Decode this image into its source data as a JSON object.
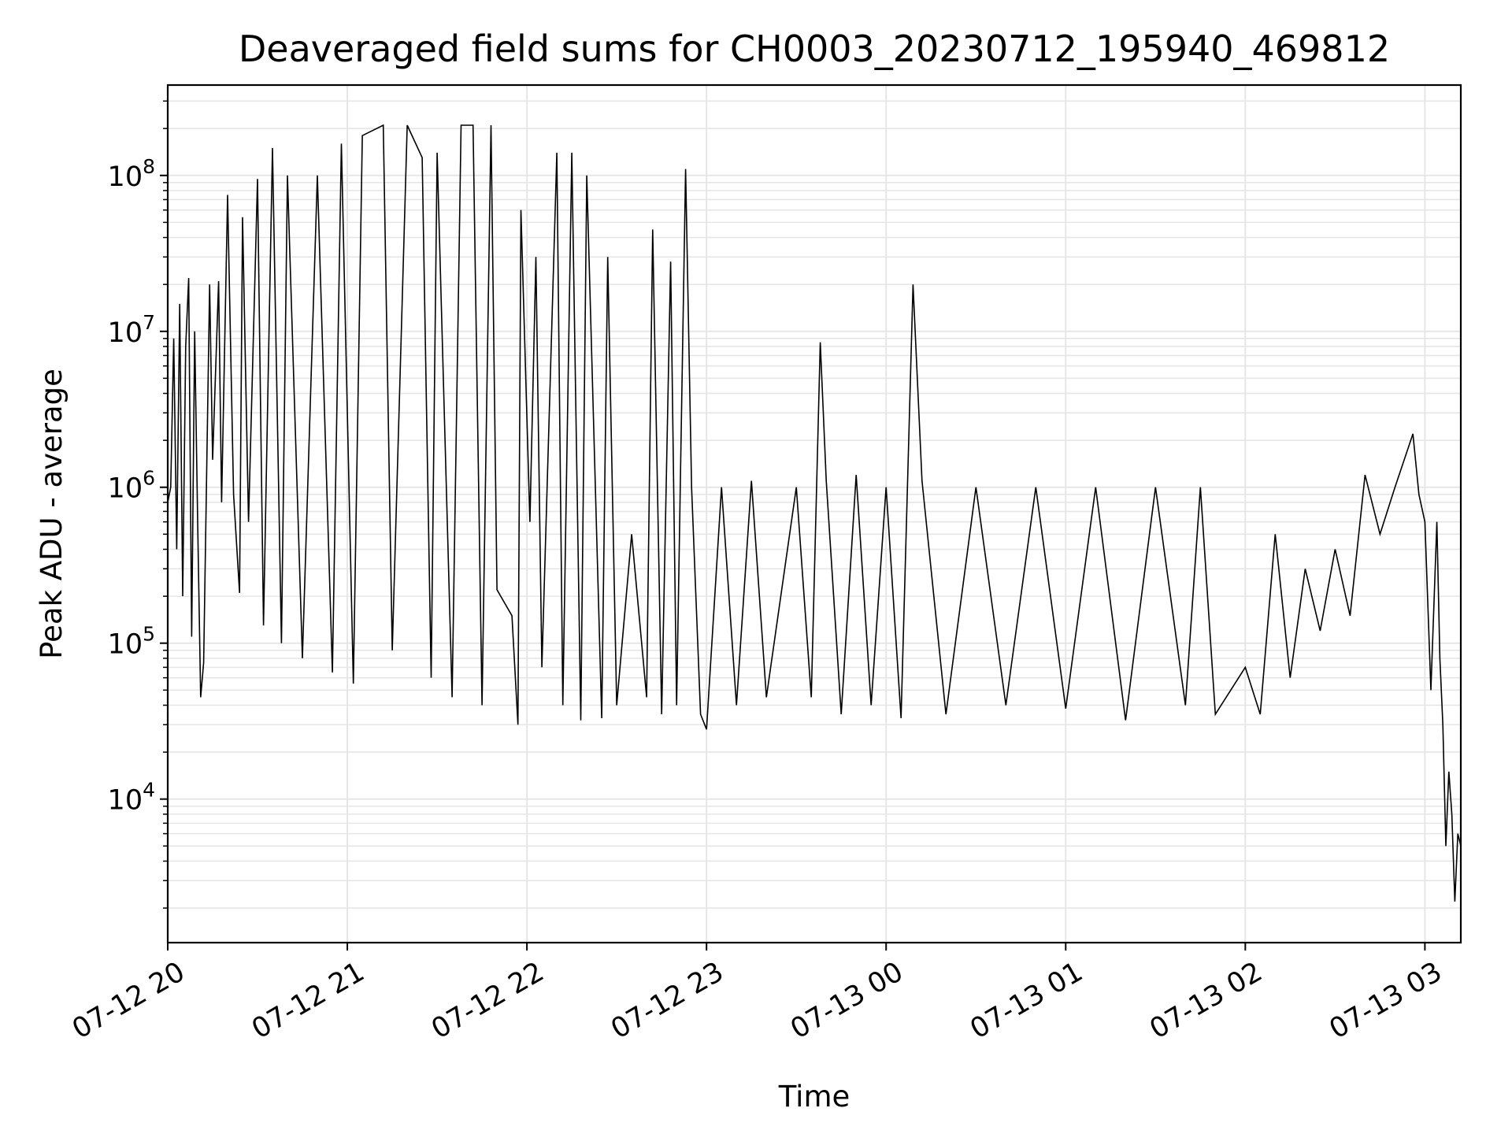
{
  "chart_data": {
    "type": "line",
    "title": "Deaveraged field sums for CH0003_20230712_195940_469812",
    "xlabel": "Time",
    "ylabel": "Peak ADU - average",
    "y_scale": "log",
    "ylim": [
      1200,
      380000000
    ],
    "xlim": [
      "2023-07-12 20:00",
      "2023-07-13 03:12"
    ],
    "x_ticks": [
      {
        "label": "07-12 20",
        "t": "2023-07-12 20:00"
      },
      {
        "label": "07-12 21",
        "t": "2023-07-12 21:00"
      },
      {
        "label": "07-12 22",
        "t": "2023-07-12 22:00"
      },
      {
        "label": "07-12 23",
        "t": "2023-07-12 23:00"
      },
      {
        "label": "07-13 00",
        "t": "2023-07-13 00:00"
      },
      {
        "label": "07-13 01",
        "t": "2023-07-13 01:00"
      },
      {
        "label": "07-13 02",
        "t": "2023-07-13 02:00"
      },
      {
        "label": "07-13 03",
        "t": "2023-07-13 03:00"
      }
    ],
    "y_ticks": [
      {
        "value": 10000,
        "base": "10",
        "exp": "4"
      },
      {
        "value": 100000,
        "base": "10",
        "exp": "5"
      },
      {
        "value": 1000000,
        "base": "10",
        "exp": "6"
      },
      {
        "value": 10000000,
        "base": "10",
        "exp": "7"
      },
      {
        "value": 100000000,
        "base": "10",
        "exp": "8"
      }
    ],
    "grid": true,
    "line_color": "#000000",
    "grid_color": "#e6e6e6",
    "series": [
      {
        "points": [
          [
            "2023-07-12 20:00",
            800000
          ],
          [
            "2023-07-12 20:01",
            1000000
          ],
          [
            "2023-07-12 20:02",
            9000000
          ],
          [
            "2023-07-12 20:03",
            400000
          ],
          [
            "2023-07-12 20:04",
            15000000
          ],
          [
            "2023-07-12 20:05",
            200000
          ],
          [
            "2023-07-12 20:06",
            8000000
          ],
          [
            "2023-07-12 20:07",
            22000000
          ],
          [
            "2023-07-12 20:08",
            110000
          ],
          [
            "2023-07-12 20:09",
            10000000
          ],
          [
            "2023-07-12 20:10",
            600000
          ],
          [
            "2023-07-12 20:11",
            45000
          ],
          [
            "2023-07-12 20:12",
            75000
          ],
          [
            "2023-07-12 20:14",
            20000000
          ],
          [
            "2023-07-12 20:15",
            1500000
          ],
          [
            "2023-07-12 20:17",
            21000000
          ],
          [
            "2023-07-12 20:18",
            800000
          ],
          [
            "2023-07-12 20:20",
            75000000
          ],
          [
            "2023-07-12 20:22",
            900000
          ],
          [
            "2023-07-12 20:24",
            210000
          ],
          [
            "2023-07-12 20:25",
            54000000
          ],
          [
            "2023-07-12 20:27",
            600000
          ],
          [
            "2023-07-12 20:30",
            95000000
          ],
          [
            "2023-07-12 20:32",
            130000
          ],
          [
            "2023-07-12 20:35",
            150000000
          ],
          [
            "2023-07-12 20:38",
            100000
          ],
          [
            "2023-07-12 20:40",
            100000000
          ],
          [
            "2023-07-12 20:45",
            80000
          ],
          [
            "2023-07-12 20:50",
            100000000
          ],
          [
            "2023-07-12 20:55",
            65000
          ],
          [
            "2023-07-12 20:58",
            160000000
          ],
          [
            "2023-07-12 21:02",
            55000
          ],
          [
            "2023-07-12 21:05",
            180000000
          ],
          [
            "2023-07-12 21:12",
            210000000
          ],
          [
            "2023-07-12 21:15",
            90000
          ],
          [
            "2023-07-12 21:20",
            210000000
          ],
          [
            "2023-07-12 21:25",
            130000000
          ],
          [
            "2023-07-12 21:28",
            60000
          ],
          [
            "2023-07-12 21:30",
            140000000
          ],
          [
            "2023-07-12 21:35",
            45000
          ],
          [
            "2023-07-12 21:38",
            210000000
          ],
          [
            "2023-07-12 21:42",
            210000000
          ],
          [
            "2023-07-12 21:45",
            40000
          ],
          [
            "2023-07-12 21:48",
            210000000
          ],
          [
            "2023-07-12 21:50",
            220000
          ],
          [
            "2023-07-12 21:55",
            150000
          ],
          [
            "2023-07-12 21:57",
            30000
          ],
          [
            "2023-07-12 21:58",
            60000000
          ],
          [
            "2023-07-12 22:01",
            600000
          ],
          [
            "2023-07-12 22:03",
            30000000
          ],
          [
            "2023-07-12 22:05",
            70000
          ],
          [
            "2023-07-12 22:10",
            140000000
          ],
          [
            "2023-07-12 22:12",
            40000
          ],
          [
            "2023-07-12 22:15",
            140000000
          ],
          [
            "2023-07-12 22:18",
            32000
          ],
          [
            "2023-07-12 22:20",
            100000000
          ],
          [
            "2023-07-12 22:25",
            33000
          ],
          [
            "2023-07-12 22:27",
            30000000
          ],
          [
            "2023-07-12 22:30",
            40000
          ],
          [
            "2023-07-12 22:35",
            500000
          ],
          [
            "2023-07-12 22:40",
            45000
          ],
          [
            "2023-07-12 22:42",
            45000000
          ],
          [
            "2023-07-12 22:45",
            35000
          ],
          [
            "2023-07-12 22:48",
            28000000
          ],
          [
            "2023-07-12 22:50",
            40000
          ],
          [
            "2023-07-12 22:53",
            110000000
          ],
          [
            "2023-07-12 22:55",
            1000000
          ],
          [
            "2023-07-12 22:58",
            35000
          ],
          [
            "2023-07-12 23:00",
            28000
          ],
          [
            "2023-07-12 23:05",
            1000000
          ],
          [
            "2023-07-12 23:10",
            40000
          ],
          [
            "2023-07-12 23:15",
            1100000
          ],
          [
            "2023-07-12 23:20",
            45000
          ],
          [
            "2023-07-12 23:30",
            1000000
          ],
          [
            "2023-07-12 23:35",
            45000
          ],
          [
            "2023-07-12 23:38",
            8500000
          ],
          [
            "2023-07-12 23:40",
            1100000
          ],
          [
            "2023-07-12 23:45",
            35000
          ],
          [
            "2023-07-12 23:50",
            1200000
          ],
          [
            "2023-07-12 23:55",
            40000
          ],
          [
            "2023-07-13 00:00",
            1000000
          ],
          [
            "2023-07-13 00:05",
            33000
          ],
          [
            "2023-07-13 00:09",
            20000000
          ],
          [
            "2023-07-13 00:12",
            1100000
          ],
          [
            "2023-07-13 00:20",
            35000
          ],
          [
            "2023-07-13 00:30",
            1000000
          ],
          [
            "2023-07-13 00:40",
            40000
          ],
          [
            "2023-07-13 00:50",
            1000000
          ],
          [
            "2023-07-13 01:00",
            38000
          ],
          [
            "2023-07-13 01:10",
            1000000
          ],
          [
            "2023-07-13 01:20",
            32000
          ],
          [
            "2023-07-13 01:30",
            1000000
          ],
          [
            "2023-07-13 01:40",
            40000
          ],
          [
            "2023-07-13 01:45",
            1000000
          ],
          [
            "2023-07-13 01:50",
            35000
          ],
          [
            "2023-07-13 02:00",
            70000
          ],
          [
            "2023-07-13 02:05",
            35000
          ],
          [
            "2023-07-13 02:10",
            500000
          ],
          [
            "2023-07-13 02:15",
            60000
          ],
          [
            "2023-07-13 02:20",
            300000
          ],
          [
            "2023-07-13 02:25",
            120000
          ],
          [
            "2023-07-13 02:30",
            400000
          ],
          [
            "2023-07-13 02:35",
            150000
          ],
          [
            "2023-07-13 02:40",
            1200000
          ],
          [
            "2023-07-13 02:45",
            500000
          ],
          [
            "2023-07-13 02:50",
            1000000
          ],
          [
            "2023-07-13 02:56",
            2200000
          ],
          [
            "2023-07-13 02:58",
            900000
          ],
          [
            "2023-07-13 03:00",
            600000
          ],
          [
            "2023-07-13 03:02",
            50000
          ],
          [
            "2023-07-13 03:04",
            600000
          ],
          [
            "2023-07-13 03:05",
            80000
          ],
          [
            "2023-07-13 03:06",
            30000
          ],
          [
            "2023-07-13 03:07",
            5000
          ],
          [
            "2023-07-13 03:08",
            15000
          ],
          [
            "2023-07-13 03:09",
            8000
          ],
          [
            "2023-07-13 03:10",
            2200
          ],
          [
            "2023-07-13 03:11",
            6000
          ],
          [
            "2023-07-13 03:12",
            5000
          ]
        ]
      }
    ]
  }
}
